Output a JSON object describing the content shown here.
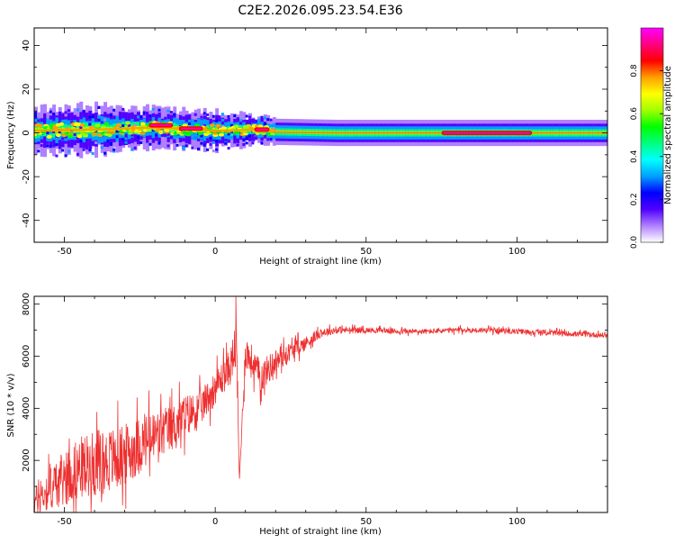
{
  "figure": {
    "title": "C2E2.2026.095.23.54.E36"
  },
  "chart_data": [
    {
      "type": "heatmap",
      "xlabel": "Height of straight line (km)",
      "ylabel": "Frequency (Hz)",
      "xlim": [
        -60,
        130
      ],
      "ylim": [
        -50,
        48
      ],
      "xticks": [
        -50,
        0,
        50,
        100
      ],
      "yticks": [
        -40,
        -20,
        0,
        20,
        40
      ],
      "colorbar": {
        "label": "Normalized spectral amplitude",
        "ticks": [
          0.0,
          0.2,
          0.4,
          0.6,
          0.8
        ],
        "range": [
          0,
          1
        ],
        "colors": [
          "#ffffff",
          "#b080ff",
          "#5000ff",
          "#0000ff",
          "#00a0ff",
          "#00ffff",
          "#00ff80",
          "#00ff00",
          "#a0ff00",
          "#ffff00",
          "#ffa000",
          "#ff0000",
          "#ff0080",
          "#ff00ff"
        ]
      },
      "band": [
        {
          "x": -60,
          "center": 1.0,
          "halfwidth": 5
        },
        {
          "x": -40,
          "center": 1.5,
          "halfwidth": 5
        },
        {
          "x": -20,
          "center": 2.5,
          "halfwidth": 4
        },
        {
          "x": 0,
          "center": 1.0,
          "halfwidth": 4
        },
        {
          "x": 15,
          "center": 1.5,
          "halfwidth": 3
        },
        {
          "x": 20,
          "center": 0.5,
          "halfwidth": 3
        },
        {
          "x": 40,
          "center": 0.0,
          "halfwidth": 3
        },
        {
          "x": 130,
          "center": 0.0,
          "halfwidth": 3
        }
      ],
      "peaks": [
        {
          "x0": -22,
          "x1": -14,
          "f": 3.5
        },
        {
          "x0": -12,
          "x1": -4,
          "f": 2.0
        },
        {
          "x0": 13,
          "x1": 18,
          "f": 1.5
        },
        {
          "x0": 75,
          "x1": 105,
          "f": 0.0
        }
      ]
    },
    {
      "type": "line",
      "xlabel": "Height of straight line (km)",
      "ylabel": "SNR (10 * v/v)",
      "xlim": [
        -60,
        130
      ],
      "ylim": [
        0,
        8300
      ],
      "xticks": [
        -50,
        0,
        50,
        100
      ],
      "yticks": [
        2000,
        4000,
        6000,
        8000
      ],
      "series": [
        {
          "name": "SNR",
          "color": "#ee3030",
          "x": [
            -60,
            -55,
            -50,
            -45,
            -40,
            -35,
            -30,
            -25,
            -20,
            -15,
            -10,
            -5,
            0,
            5,
            7,
            8,
            10,
            15,
            20,
            25,
            30,
            35,
            40,
            45,
            50,
            55,
            60,
            70,
            80,
            90,
            100,
            110,
            120,
            130
          ],
          "values": [
            400,
            900,
            1300,
            1700,
            1900,
            2000,
            2200,
            2600,
            2900,
            3200,
            3700,
            4000,
            4800,
            5600,
            6500,
            1200,
            6200,
            5200,
            5800,
            6200,
            6500,
            6900,
            7000,
            7000,
            7000,
            7000,
            6950,
            6950,
            7000,
            7000,
            6950,
            6900,
            6850,
            6800
          ],
          "spread": [
            800,
            1200,
            1500,
            1700,
            1800,
            1800,
            1700,
            1600,
            1500,
            1300,
            1200,
            1000,
            900,
            1000,
            1500,
            0,
            1000,
            900,
            700,
            500,
            400,
            250,
            200,
            180,
            160,
            150,
            150,
            150,
            150,
            150,
            150,
            150,
            150,
            150
          ]
        }
      ]
    }
  ]
}
